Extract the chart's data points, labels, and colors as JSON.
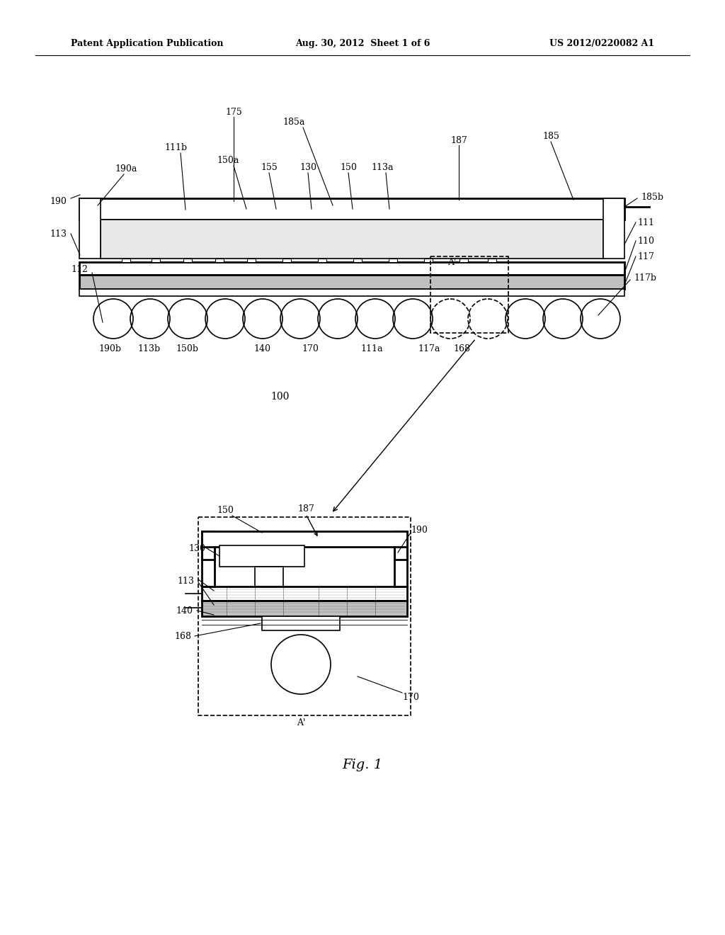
{
  "bg_color": "#ffffff",
  "header_left": "Patent Application Publication",
  "header_mid": "Aug. 30, 2012  Sheet 1 of 6",
  "header_right": "US 2012/0220082 A1",
  "fig_label": "Fig. 1"
}
